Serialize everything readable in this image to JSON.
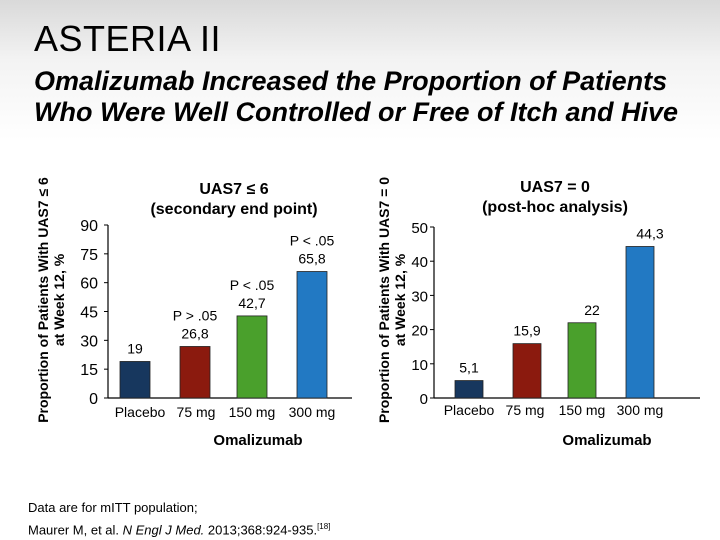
{
  "slide": {
    "title": "ASTERIA II",
    "subtitle": "Omalizumab Increased the Proportion of Patients Who Were Well Controlled or Free of Itch and Hive"
  },
  "chart_data": [
    {
      "type": "bar",
      "title": "UAS7 ≤ 6",
      "subtitle": "(secondary end point)",
      "ylabel": "Proportion of Patients With UAS7 ≤ 6 at Week 12, %",
      "xlabel": "Omalizumab",
      "ylim": [
        0,
        90
      ],
      "yticks": [
        0,
        15,
        30,
        45,
        60,
        75,
        90
      ],
      "categories": [
        "Placebo",
        "75 mg",
        "150 mg",
        "300 mg"
      ],
      "values": [
        19,
        26.8,
        42.7,
        65.8
      ],
      "value_labels": [
        "19",
        "26,8",
        "42,7",
        "65,8"
      ],
      "annotations": [
        "",
        "P > .05",
        "P < .05",
        "P < .05"
      ],
      "colors": [
        "#17375e",
        "#8b1a0e",
        "#4aa02c",
        "#2279c3"
      ]
    },
    {
      "type": "bar",
      "title": "UAS7 = 0",
      "subtitle": "(post-hoc analysis)",
      "ylabel": "Proportion of Patients With UAS7 = 0 at Week 12, %",
      "xlabel": "Omalizumab",
      "ylim": [
        0,
        50
      ],
      "yticks": [
        0,
        10,
        20,
        30,
        40,
        50
      ],
      "categories": [
        "Placebo",
        "75 mg",
        "150 mg",
        "300 mg"
      ],
      "values": [
        5.1,
        15.9,
        22,
        44.3
      ],
      "value_labels": [
        "5,1",
        "15,9",
        "22",
        "44,3"
      ],
      "annotations": [
        "",
        "",
        "",
        ""
      ],
      "colors": [
        "#17375e",
        "#8b1a0e",
        "#4aa02c",
        "#2279c3"
      ]
    }
  ],
  "footnote": {
    "line1": "Data are for mITT population;",
    "authors": "Maurer M, et al. ",
    "journal": "N Engl J Med.",
    "citation": " 2013;368:924-935.",
    "ref": "[18]"
  }
}
